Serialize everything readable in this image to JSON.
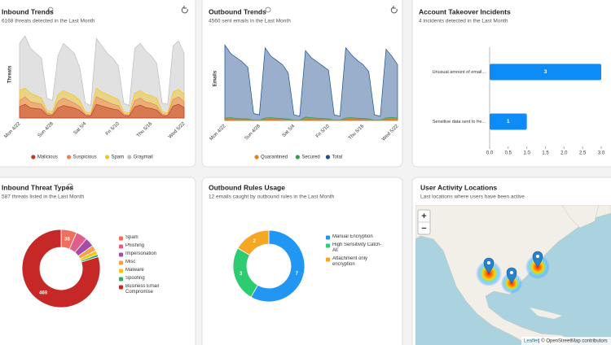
{
  "chart_data": [
    {
      "type": "area",
      "title": "Inbound Trends",
      "subtitle": "6168 threats detected in the Last Month",
      "y_label": "Threats",
      "categories": [
        "Mon 4/22",
        null,
        null,
        null,
        null,
        null,
        "Sun 4/28",
        null,
        null,
        null,
        null,
        null,
        "Sat 5/4",
        null,
        null,
        null,
        null,
        null,
        "Fri 5/10",
        null,
        null,
        null,
        null,
        null,
        "Thu 5/16",
        null,
        null,
        null,
        null,
        null,
        "Wed 5/22"
      ],
      "ylim": [
        0,
        350
      ],
      "series": [
        {
          "name": "Graymail",
          "color": "#bdbdbd",
          "values": [
            300,
            330,
            280,
            260,
            240,
            80,
            70,
            250,
            300,
            280,
            260,
            200,
            60,
            50,
            320,
            290,
            260,
            240,
            210,
            60,
            50,
            280,
            300,
            270,
            250,
            220,
            60,
            55,
            290,
            310,
            260
          ]
        },
        {
          "name": "Spam",
          "color": "#f5c518",
          "values": [
            110,
            120,
            100,
            90,
            80,
            30,
            25,
            95,
            110,
            100,
            90,
            70,
            25,
            20,
            120,
            105,
            95,
            85,
            75,
            25,
            20,
            100,
            110,
            95,
            90,
            80,
            25,
            20,
            105,
            115,
            95
          ]
        },
        {
          "name": "Suspicious",
          "color": "#e8825f",
          "values": [
            70,
            85,
            65,
            60,
            55,
            20,
            15,
            65,
            80,
            70,
            60,
            45,
            15,
            12,
            85,
            75,
            65,
            55,
            50,
            15,
            12,
            70,
            80,
            65,
            60,
            50,
            15,
            12,
            75,
            85,
            65
          ]
        },
        {
          "name": "Malicious",
          "color": "#c0392b",
          "values": [
            45,
            55,
            40,
            38,
            35,
            12,
            10,
            40,
            50,
            45,
            40,
            30,
            10,
            8,
            55,
            48,
            42,
            36,
            32,
            10,
            8,
            45,
            52,
            42,
            38,
            32,
            10,
            8,
            48,
            55,
            42
          ]
        }
      ]
    },
    {
      "type": "area",
      "title": "Outbound Trends",
      "subtitle": "4560 sent emails in the Last Month",
      "y_label": "Emails",
      "categories": [
        "Mon 4/22",
        null,
        null,
        null,
        null,
        null,
        "Sun 4/28",
        null,
        null,
        null,
        null,
        null,
        "Sat 5/4",
        null,
        null,
        null,
        null,
        null,
        "Fri 5/10",
        null,
        null,
        null,
        null,
        null,
        "Thu 5/16",
        null,
        null,
        null,
        null,
        null,
        "Wed 5/22"
      ],
      "ylim": [
        0,
        300
      ],
      "series": [
        {
          "name": "Total",
          "color": "#1f4e8c",
          "values": [
            270,
            240,
            225,
            210,
            190,
            25,
            20,
            260,
            230,
            215,
            200,
            170,
            20,
            15,
            250,
            225,
            210,
            195,
            180,
            20,
            15,
            260,
            235,
            215,
            200,
            175,
            20,
            15,
            255,
            230,
            200
          ]
        },
        {
          "name": "Secured",
          "color": "#2e9e4f",
          "values": [
            8,
            10,
            7,
            6,
            6,
            1,
            1,
            9,
            10,
            8,
            7,
            5,
            1,
            1,
            12,
            10,
            8,
            7,
            6,
            1,
            1,
            9,
            10,
            8,
            7,
            6,
            1,
            1,
            9,
            11,
            8
          ]
        },
        {
          "name": "Quarantined",
          "color": "#e67e22",
          "values": [
            4,
            5,
            3,
            3,
            3,
            0,
            0,
            4,
            5,
            4,
            3,
            2,
            0,
            0,
            5,
            4,
            4,
            3,
            3,
            0,
            0,
            4,
            5,
            4,
            3,
            3,
            0,
            0,
            4,
            5,
            4
          ]
        }
      ]
    },
    {
      "type": "hbar",
      "title": "Account Takeover Incidents",
      "subtitle": "4 incidents detected in the Last Month",
      "categories": [
        "Unusual amount of email...",
        "Sensitive data sent to fre..."
      ],
      "values": [
        3,
        1
      ],
      "color": "#0d8cf7",
      "xlim": [
        0,
        3
      ],
      "xticks": [
        {
          "value": 0,
          "label": "0.0"
        },
        {
          "value": 0.5,
          "label": "0.5"
        },
        {
          "value": 1,
          "label": "1.0"
        },
        {
          "value": 1.5,
          "label": "1.5"
        },
        {
          "value": 2,
          "label": "2.0"
        },
        {
          "value": 2.5,
          "label": "2.5"
        },
        {
          "value": 3,
          "label": "3.0"
        }
      ]
    },
    {
      "type": "donut",
      "title": "Inbound Threat Types",
      "subtitle": "587 threats listed in the Last Month",
      "categories": [
        "Spam",
        "Phishing",
        "Impersonation",
        "Misc",
        "Malware",
        "Spoofing",
        "Business Email Compromise"
      ],
      "values": [
        38,
        28,
        22,
        14,
        10,
        6,
        469
      ],
      "colors": [
        "#ef6f5e",
        "#e05d8c",
        "#a64ca6",
        "#f6a04d",
        "#f5c518",
        "#3aa860",
        "#c62828"
      ]
    },
    {
      "type": "donut",
      "title": "Outbound Rules Usage",
      "subtitle": "12 emails caught by outbound rules in the Last Month",
      "categories": [
        "Manual Encryption",
        "High Sensitivity Catch-All",
        "Attachment only encryption"
      ],
      "values": [
        7,
        3,
        2
      ],
      "colors": [
        "#2196f3",
        "#2ecc71",
        "#f5a623"
      ]
    }
  ],
  "map": {
    "title": "User Activity Locations",
    "subtitle": "Last locations where users have been active",
    "zoom_in": "+",
    "zoom_out": "−",
    "attribution_link": "Leaflet",
    "attribution": "| © OpenStreetMap contributors"
  }
}
